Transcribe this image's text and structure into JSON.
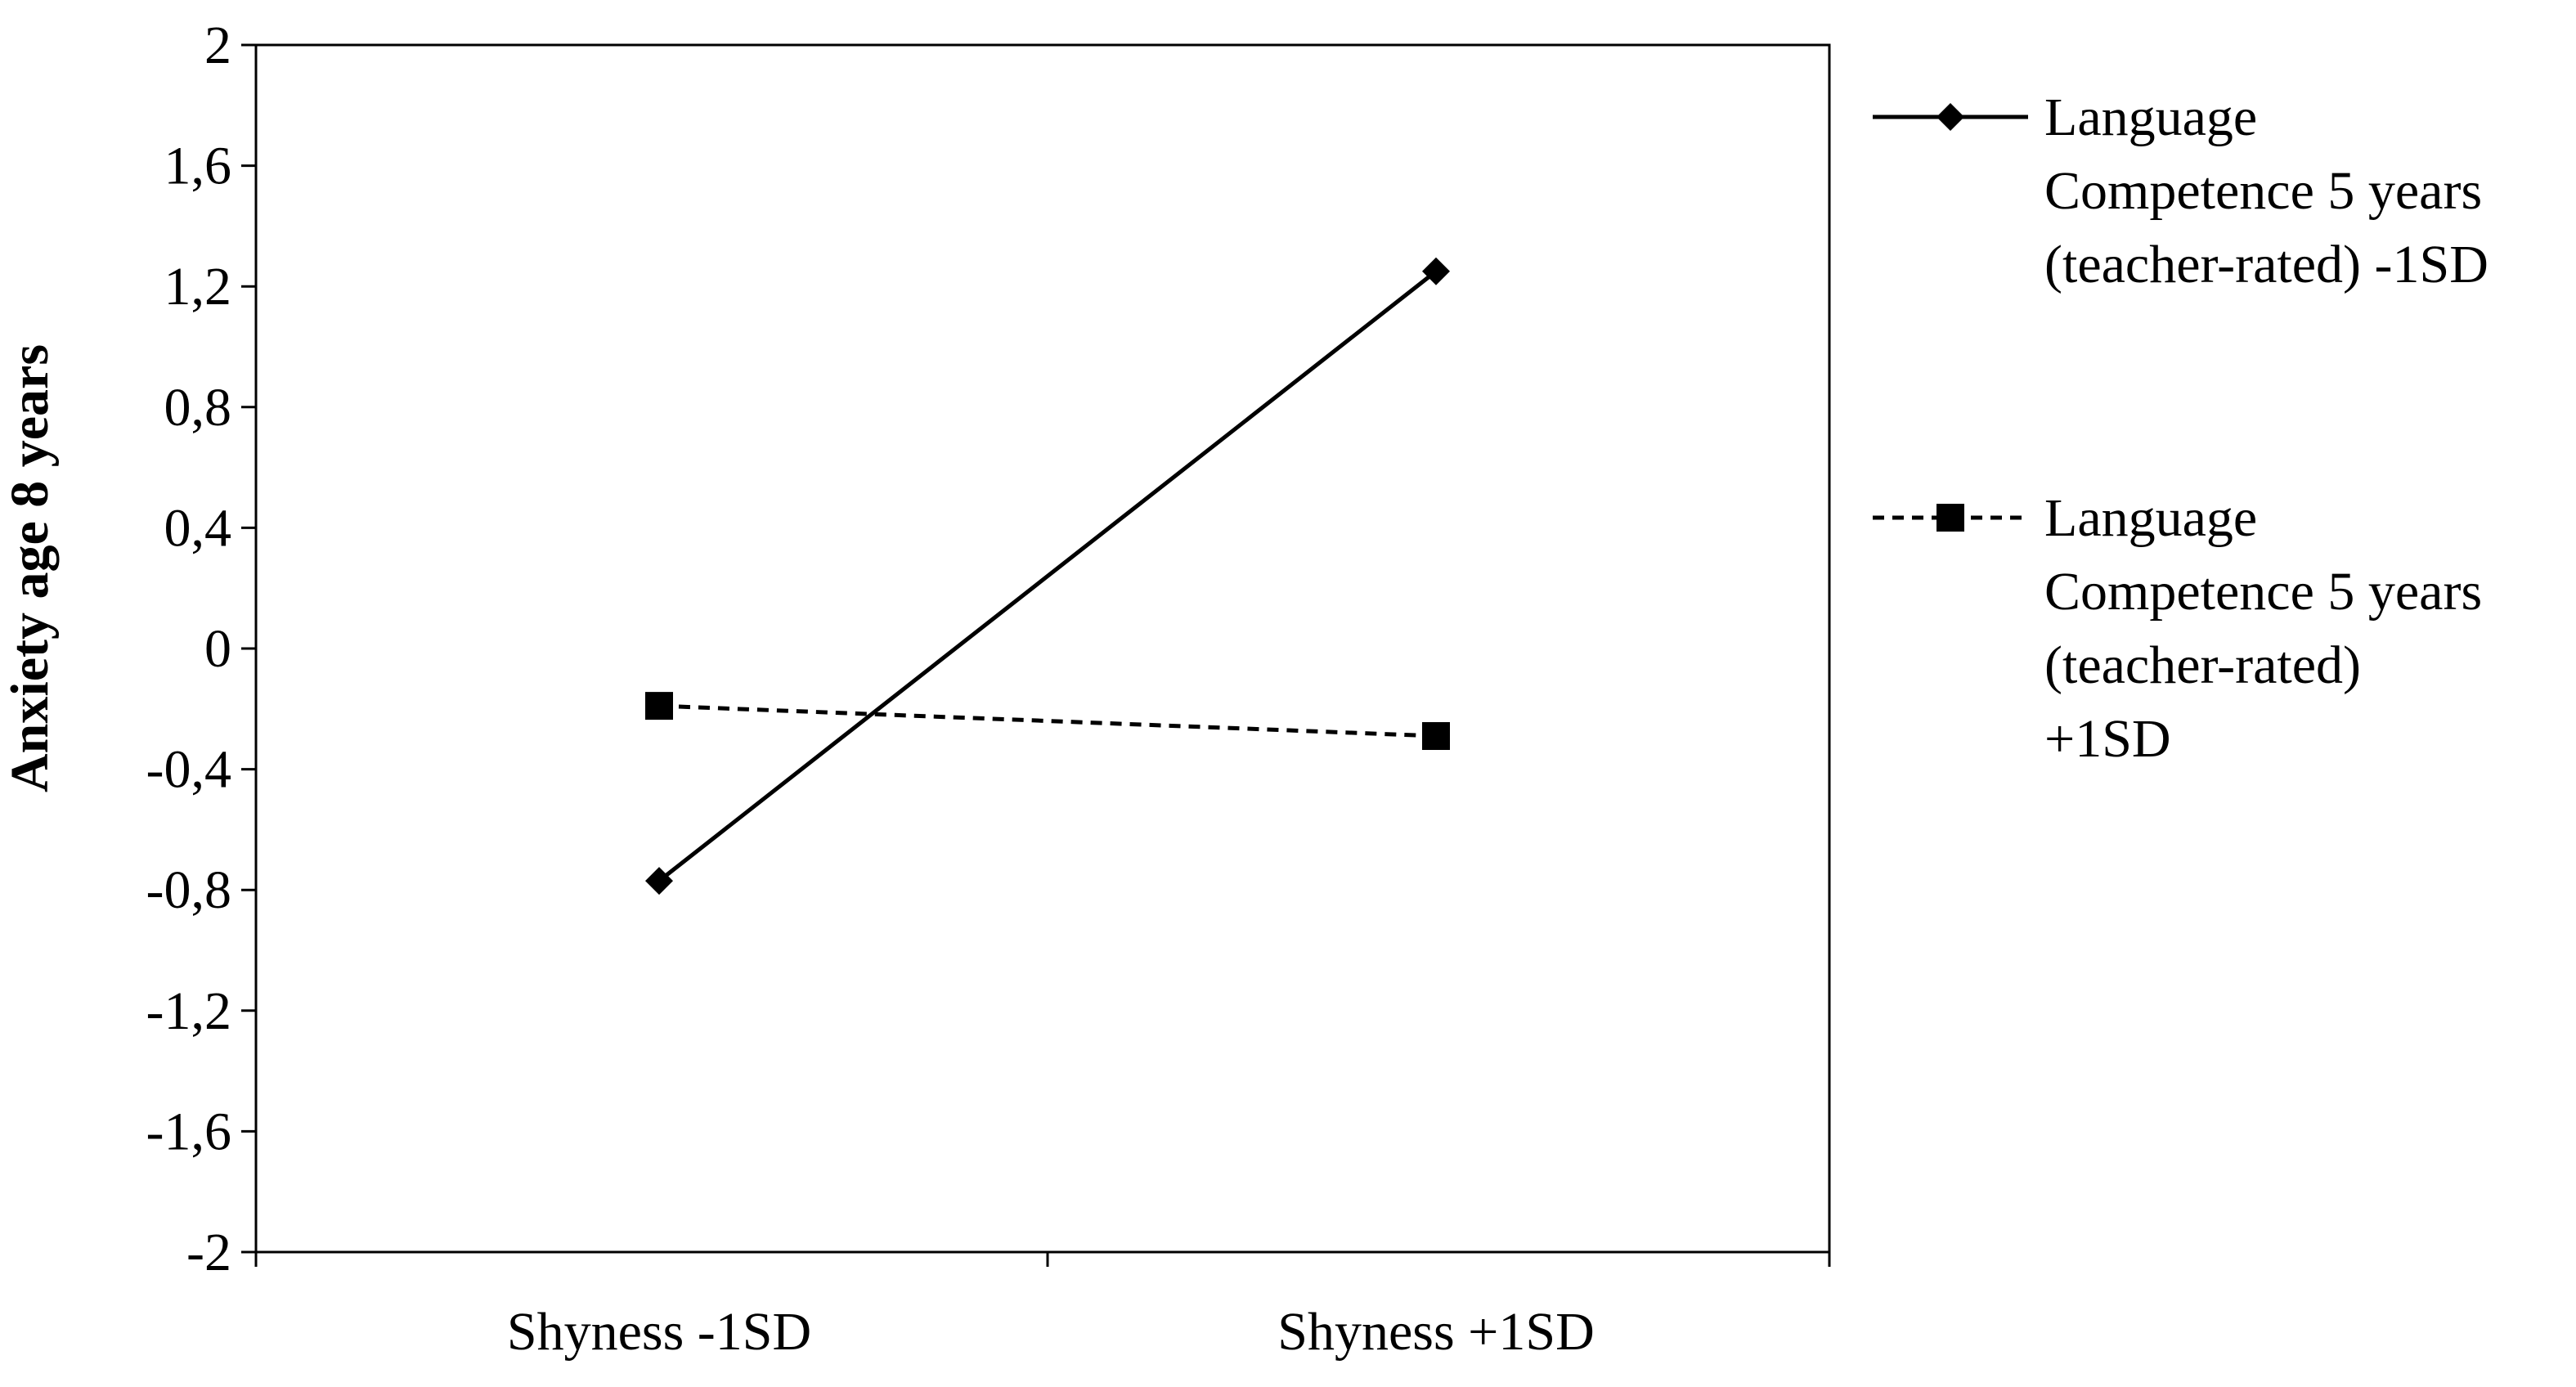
{
  "chart_data": {
    "type": "line",
    "title": "",
    "xlabel": "",
    "ylabel": "Anxiety  age 8 years",
    "categories": [
      "Shyness -1SD",
      "Shyness +1SD"
    ],
    "ylim": [
      -2,
      2
    ],
    "yticks": [
      -2,
      -1.6,
      -1.2,
      -0.8,
      -0.4,
      0,
      0.4,
      0.8,
      1.2,
      1.6,
      2
    ],
    "ytick_labels": [
      "-2",
      "-1,6",
      "-1,2",
      "-0,8",
      "-0,4",
      "0",
      "0,4",
      "0,8",
      "1,2",
      "1,6",
      "2"
    ],
    "grid": false,
    "legend_position": "right",
    "series": [
      {
        "name": "Language Competence 5 years (teacher-rated) -1SD",
        "legend_lines": [
          "Language",
          "Competence 5 years",
          "(teacher-rated) -1SD"
        ],
        "values": [
          -0.77,
          1.25
        ],
        "line_style": "solid",
        "marker": "diamond",
        "color": "#000000"
      },
      {
        "name": "Language Competence 5 years (teacher-rated) +1SD",
        "legend_lines": [
          "Language",
          "Competence 5 years",
          "(teacher-rated)",
          "+1SD"
        ],
        "values": [
          -0.19,
          -0.29
        ],
        "line_style": "dashed",
        "marker": "square",
        "color": "#000000"
      }
    ]
  }
}
